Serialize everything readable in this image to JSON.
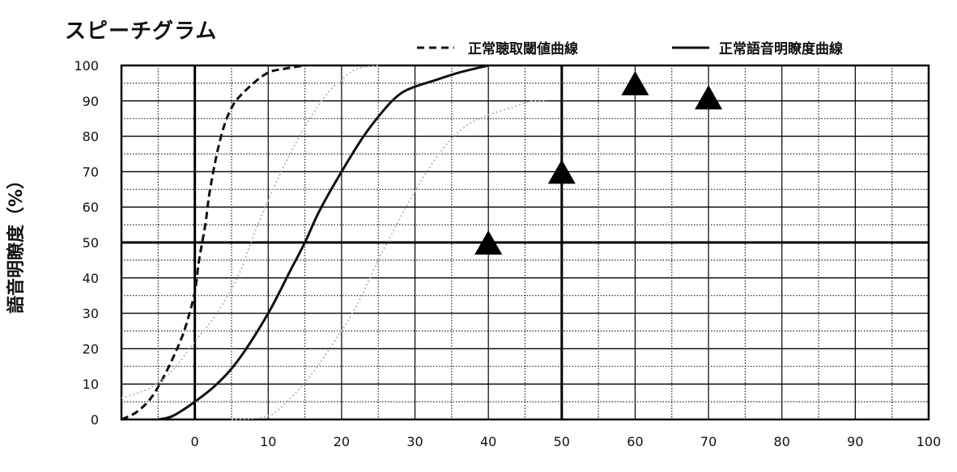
{
  "chart_data": {
    "type": "line",
    "title": "スピーチグラム",
    "ylabel": "語音明瞭度（%）",
    "xlabel": "",
    "xlim": [
      -10,
      100
    ],
    "ylim": [
      0,
      100
    ],
    "x_ticks": [
      0,
      10,
      20,
      30,
      40,
      50,
      60,
      70,
      80,
      90,
      100
    ],
    "y_ticks": [
      0,
      10,
      20,
      30,
      40,
      50,
      60,
      70,
      80,
      90,
      100
    ],
    "grid": true,
    "legend_position": "top-right",
    "series": [
      {
        "name": "正常聴取閾値曲線",
        "style": "dashed",
        "color": "#111111",
        "x": [
          -10,
          -8,
          -6,
          -4,
          -2,
          -1,
          0,
          0.5,
          1,
          1.5,
          2,
          3,
          4,
          5,
          6,
          8,
          10,
          12,
          15
        ],
        "y": [
          0,
          2,
          6,
          13,
          22,
          28,
          36,
          44,
          50,
          56,
          64,
          75,
          83,
          88,
          91,
          95,
          98,
          99,
          100
        ]
      },
      {
        "name": "正常語音明瞭度曲線",
        "style": "solid",
        "color": "#111111",
        "x": [
          -5,
          -3,
          0,
          3,
          6,
          10,
          13,
          15,
          17,
          20,
          23,
          26,
          28,
          30,
          33,
          36,
          40
        ],
        "y": [
          0,
          1,
          5,
          10,
          17,
          30,
          42,
          50,
          59,
          70,
          80,
          88,
          92,
          94,
          96,
          98,
          100
        ]
      },
      {
        "name": "",
        "style": "dotted",
        "color": "#bbbbbb",
        "x": [
          -10,
          -6,
          -3,
          0,
          3,
          6,
          8,
          10,
          12,
          14,
          16,
          18,
          20,
          22,
          25
        ],
        "y": [
          6,
          9,
          14,
          22,
          30,
          41,
          52,
          62,
          71,
          79,
          86,
          92,
          96,
          99,
          100
        ]
      },
      {
        "name": "",
        "style": "dotted",
        "color": "#bbbbbb",
        "x": [
          5,
          10,
          13,
          16,
          19,
          22,
          25,
          28,
          31,
          34,
          37,
          40,
          43,
          46,
          48
        ],
        "y": [
          0,
          1,
          6,
          13,
          22,
          32,
          45,
          57,
          68,
          77,
          83,
          86,
          88,
          90,
          90
        ]
      },
      {
        "name": "",
        "style": "markers",
        "marker": "triangle",
        "color": "#000000",
        "x": [
          40,
          50,
          60,
          70
        ],
        "y": [
          50,
          70,
          95,
          91
        ]
      }
    ]
  }
}
